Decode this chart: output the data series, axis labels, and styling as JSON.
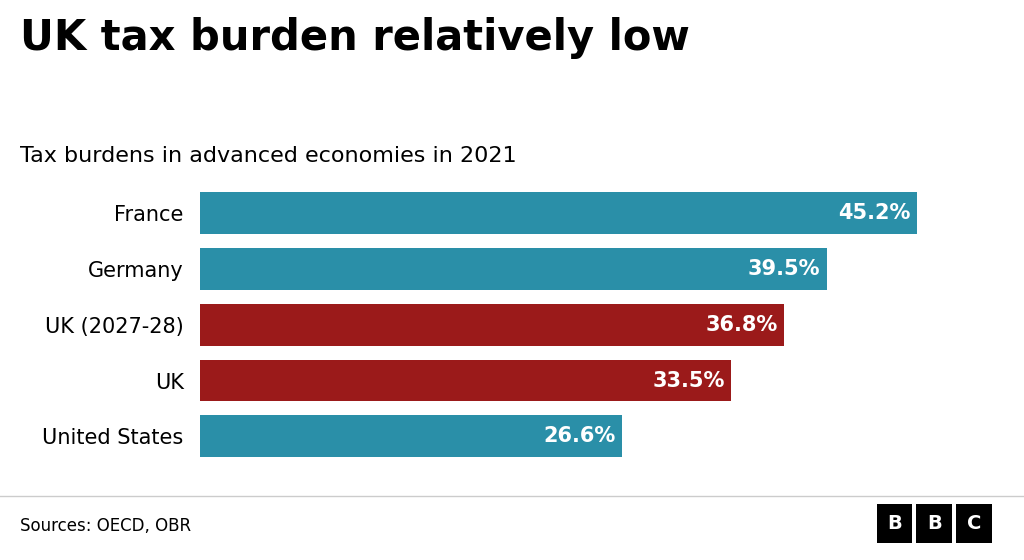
{
  "title": "UK tax burden relatively low",
  "subtitle": "Tax burdens in advanced economies in 2021",
  "categories": [
    "France",
    "Germany",
    "UK (2027-28)",
    "UK",
    "United States"
  ],
  "values": [
    45.2,
    39.5,
    36.8,
    33.5,
    26.6
  ],
  "labels": [
    "45.2%",
    "39.5%",
    "36.8%",
    "33.5%",
    "26.6%"
  ],
  "bar_colors": [
    "#2a8fa8",
    "#2a8fa8",
    "#9b1a1a",
    "#9b1a1a",
    "#2a8fa8"
  ],
  "background_color": "#ffffff",
  "text_color": "#000000",
  "bar_label_color": "#ffffff",
  "source_text": "Sources: OECD, OBR",
  "xlim": [
    0,
    50
  ],
  "title_fontsize": 30,
  "subtitle_fontsize": 16,
  "label_fontsize": 15,
  "tick_fontsize": 15,
  "source_fontsize": 12,
  "bar_height": 0.75,
  "bbc_box_color": "#000000",
  "bbc_text_color": "#ffffff",
  "separator_color": "#cccccc"
}
